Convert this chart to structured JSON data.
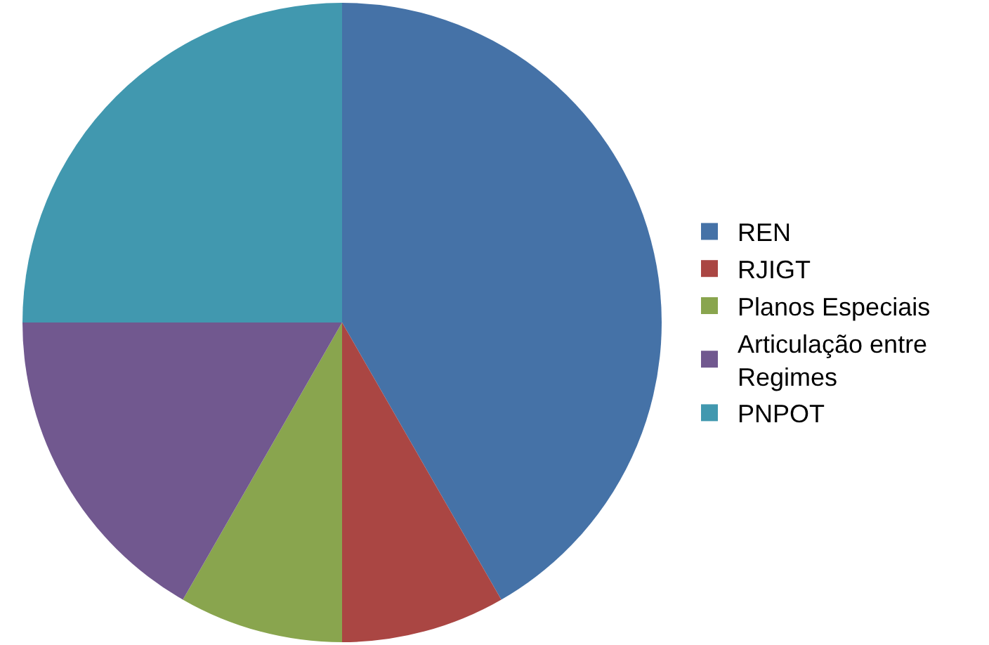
{
  "chart_data": {
    "type": "pie",
    "categories": [
      "REN",
      "RJIGT",
      "Planos Especiais",
      "Articulação entre Regimes",
      "PNPOT"
    ],
    "values": [
      41.7,
      8.3,
      8.3,
      16.7,
      25
    ],
    "colors": [
      "#4572a7",
      "#aa4643",
      "#89a54e",
      "#71588f",
      "#4198af"
    ],
    "legend": "right"
  }
}
